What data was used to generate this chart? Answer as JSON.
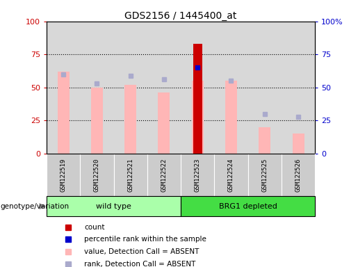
{
  "title": "GDS2156 / 1445400_at",
  "samples": [
    "GSM122519",
    "GSM122520",
    "GSM122521",
    "GSM122522",
    "GSM122523",
    "GSM122524",
    "GSM122525",
    "GSM122526"
  ],
  "count_values": [
    null,
    null,
    null,
    null,
    83,
    null,
    null,
    null
  ],
  "percentile_rank_values": [
    null,
    null,
    null,
    null,
    65,
    null,
    null,
    null
  ],
  "absent_value_bars": [
    62,
    50,
    52,
    46,
    55,
    55,
    20,
    15
  ],
  "absent_rank_dots": [
    60,
    53,
    59,
    56,
    null,
    55,
    30,
    28
  ],
  "ylim_left": [
    0,
    100
  ],
  "ylim_right": [
    0,
    100
  ],
  "grid_lines": [
    25,
    50,
    75
  ],
  "count_color": "#CC0000",
  "percentile_color": "#0000CC",
  "absent_value_color": "#FFB6B6",
  "absent_rank_color": "#AAAACC",
  "background_plot": "#D8D8D8",
  "tick_color_left": "#CC0000",
  "tick_color_right": "#0000CC",
  "group_ranges": [
    {
      "label": "wild type",
      "start": 0,
      "end": 3,
      "color": "#AAFFAA"
    },
    {
      "label": "BRG1 depleted",
      "start": 4,
      "end": 7,
      "color": "#44DD44"
    }
  ],
  "legend_items": [
    {
      "label": "count",
      "color": "#CC0000"
    },
    {
      "label": "percentile rank within the sample",
      "color": "#0000CC"
    },
    {
      "label": "value, Detection Call = ABSENT",
      "color": "#FFB6B6"
    },
    {
      "label": "rank, Detection Call = ABSENT",
      "color": "#AAAACC"
    }
  ],
  "genotype_label": "genotype/variation"
}
